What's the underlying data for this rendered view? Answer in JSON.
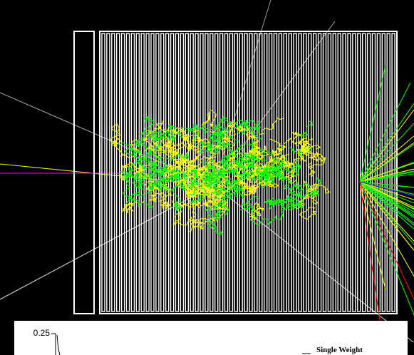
{
  "plot": {
    "y_tick": "0.25",
    "legend": "Single Weight"
  }
}
